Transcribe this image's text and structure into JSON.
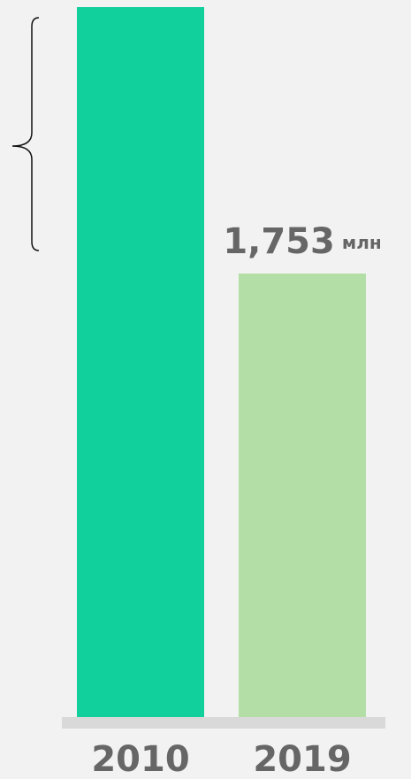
{
  "chart_data": {
    "type": "bar",
    "categories": [
      "2010",
      "2019"
    ],
    "values": [
      2806,
      1753
    ],
    "value_labels": [
      null,
      "1,753"
    ],
    "value_unit": "млн",
    "colors": [
      "#12d09c",
      "#b3dfa6"
    ]
  }
}
